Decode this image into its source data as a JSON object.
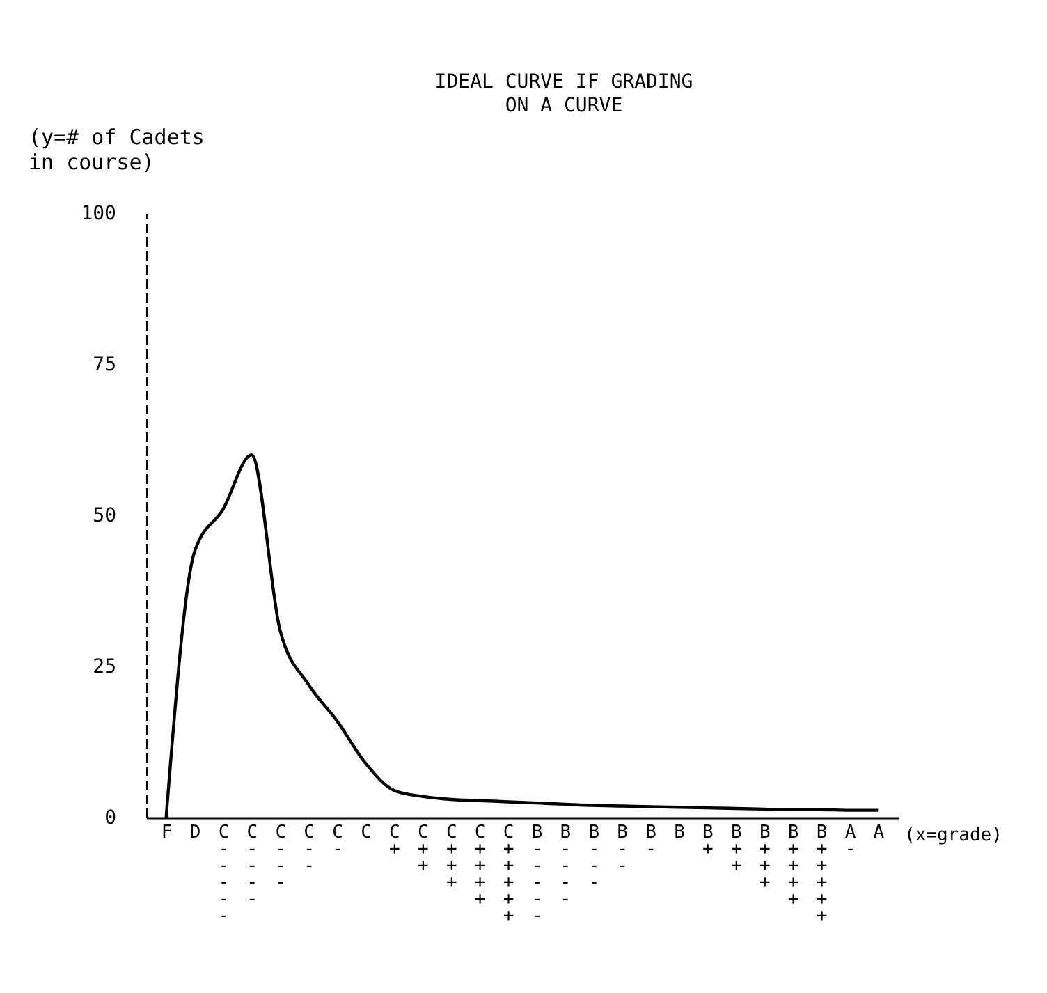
{
  "chart_data": {
    "type": "line",
    "title": "IDEAL CURVE IF GRADING\nON A CURVE",
    "xlabel": "(x=grade)",
    "ylabel": "(y=# of Cadets\nin course)",
    "categories": [
      "F",
      "D",
      "C-----",
      "C----",
      "C---",
      "C--",
      "C-",
      "C",
      "C+",
      "C++",
      "C+++",
      "C++++",
      "C+++++",
      "B-----",
      "B----",
      "B---",
      "B--",
      "B-",
      "B",
      "B+",
      "B++",
      "B+++",
      "B++++",
      "B+++++",
      "A-",
      "A"
    ],
    "series": [
      {
        "color": "#000000",
        "values": [
          0,
          44,
          51,
          60,
          31,
          22,
          16,
          9,
          4.5,
          3.5,
          3,
          2.8,
          2.6,
          2.4,
          2.2,
          2,
          1.9,
          1.8,
          1.7,
          1.6,
          1.5,
          1.4,
          1.3,
          1.3,
          1.2,
          1.2
        ]
      }
    ],
    "ylim": [
      0,
      100
    ],
    "yticks": [
      0,
      25,
      50,
      75,
      100
    ],
    "grid": false,
    "marker": "none",
    "line_style": "solid"
  }
}
